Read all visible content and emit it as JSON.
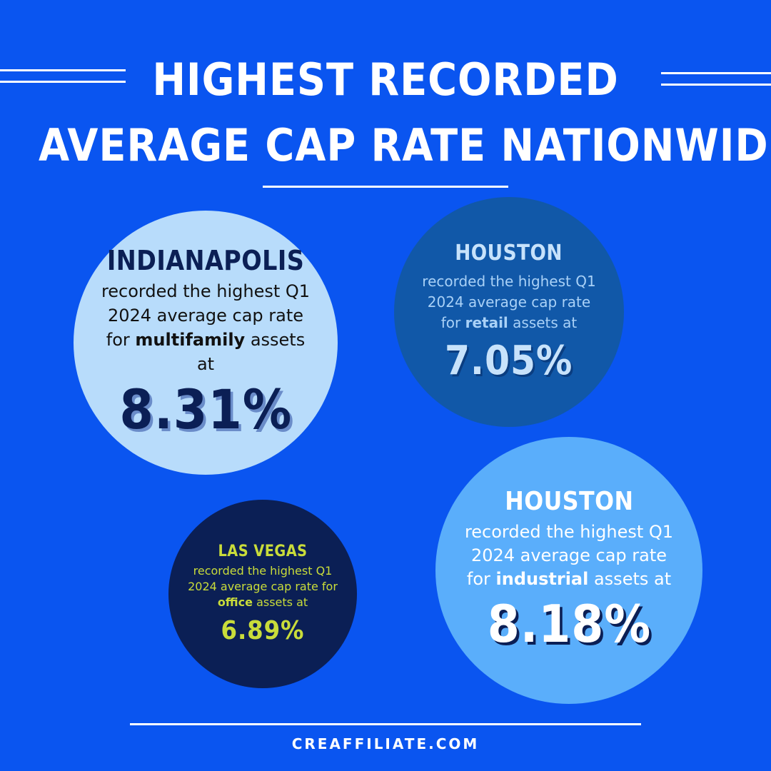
{
  "title": {
    "line1": "Highest recorded",
    "line2": "average cap rate nationwide"
  },
  "cards": [
    {
      "city": "Indianapolis",
      "desc_pre": "recorded the highest Q1 2024 average cap rate for ",
      "asset": "multifamily",
      "desc_post": " assets at",
      "value": "8.31%"
    },
    {
      "city": "Houston",
      "desc_pre": "recorded the highest Q1 2024 average cap rate for ",
      "asset": "retail",
      "desc_post": " assets at",
      "value": "7.05%"
    },
    {
      "city": "Las Vegas",
      "desc_pre": "recorded the highest Q1 2024 average cap rate for ",
      "asset": "office",
      "desc_post": " assets at",
      "value": "6.89%"
    },
    {
      "city": "Houston",
      "desc_pre": "recorded the highest Q1 2024 average cap rate for ",
      "asset": "industrial",
      "desc_post": " assets at",
      "value": "8.18%"
    }
  ],
  "footer": {
    "website": "CREAFFILIATE.COM"
  },
  "colors": {
    "background": "#0a55f0",
    "light_blue": "#b8dcfb",
    "mid_blue": "#1158a8",
    "navy": "#0b1f55",
    "sky_blue": "#5aaefb",
    "lime": "#c9dc3a"
  }
}
